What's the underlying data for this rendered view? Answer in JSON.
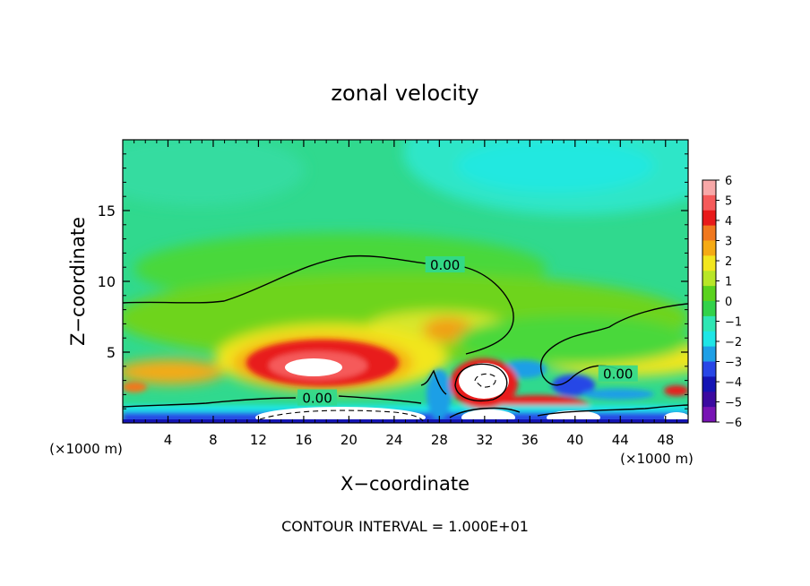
{
  "chart_data": {
    "type": "heatmap",
    "title": "zonal velocity",
    "xlabel": "X−coordinate",
    "ylabel": "Z−coordinate",
    "x_unit_left": "(×1000 m)",
    "x_unit_right": "(×1000 m)",
    "footer": "CONTOUR INTERVAL = 1.000E+01",
    "xlim": [
      0,
      50
    ],
    "ylim": [
      0,
      20
    ],
    "x_ticks": [
      4,
      8,
      12,
      16,
      20,
      24,
      28,
      32,
      36,
      40,
      44,
      48
    ],
    "x_tick_labels": [
      "4",
      "8",
      "12",
      "16",
      "20",
      "24",
      "28",
      "32",
      "36",
      "40",
      "44",
      "48"
    ],
    "y_ticks": [
      5,
      10,
      15
    ],
    "y_tick_labels": [
      "5",
      "10",
      "15"
    ],
    "contour_labels": [
      {
        "text": "0.00",
        "x": 28.5,
        "y": 11.2
      },
      {
        "text": "0.00",
        "x": 17.2,
        "y": 1.8
      },
      {
        "text": "0.00",
        "x": 43.8,
        "y": 3.5
      }
    ],
    "colorbar": {
      "range": [
        -6,
        6
      ],
      "tick_labels": [
        "6",
        "5",
        "4",
        "3",
        "2",
        "1",
        "0",
        "−1",
        "−2",
        "−3",
        "−4",
        "−5",
        "−6"
      ],
      "colors": [
        "#f7a8a8",
        "#f55a5a",
        "#e81a1a",
        "#f0781e",
        "#f5aa14",
        "#f2e61e",
        "#b8e628",
        "#5ad21e",
        "#32d24a",
        "#2fe6b4",
        "#1ee6e6",
        "#1e9fe6",
        "#2846e6",
        "#1414b4",
        "#3c0aa0",
        "#7814b4"
      ]
    },
    "grid": false,
    "field_features": [
      {
        "kind": "upper_negative_lobe",
        "x": 36,
        "y": 18,
        "value": -2.3
      },
      {
        "kind": "positive_core",
        "x": 16.5,
        "y": 4.2,
        "value": 6
      },
      {
        "kind": "positive_core",
        "x": 32,
        "y": 3,
        "value": 6
      },
      {
        "kind": "positive_core",
        "x": 40,
        "y": 1,
        "value": 5
      },
      {
        "kind": "negative_jet_near_surface",
        "x": 25,
        "y": 0.4,
        "value": -5
      },
      {
        "kind": "negative_pocket",
        "x": 40,
        "y": 3,
        "value": -3.5
      }
    ]
  }
}
